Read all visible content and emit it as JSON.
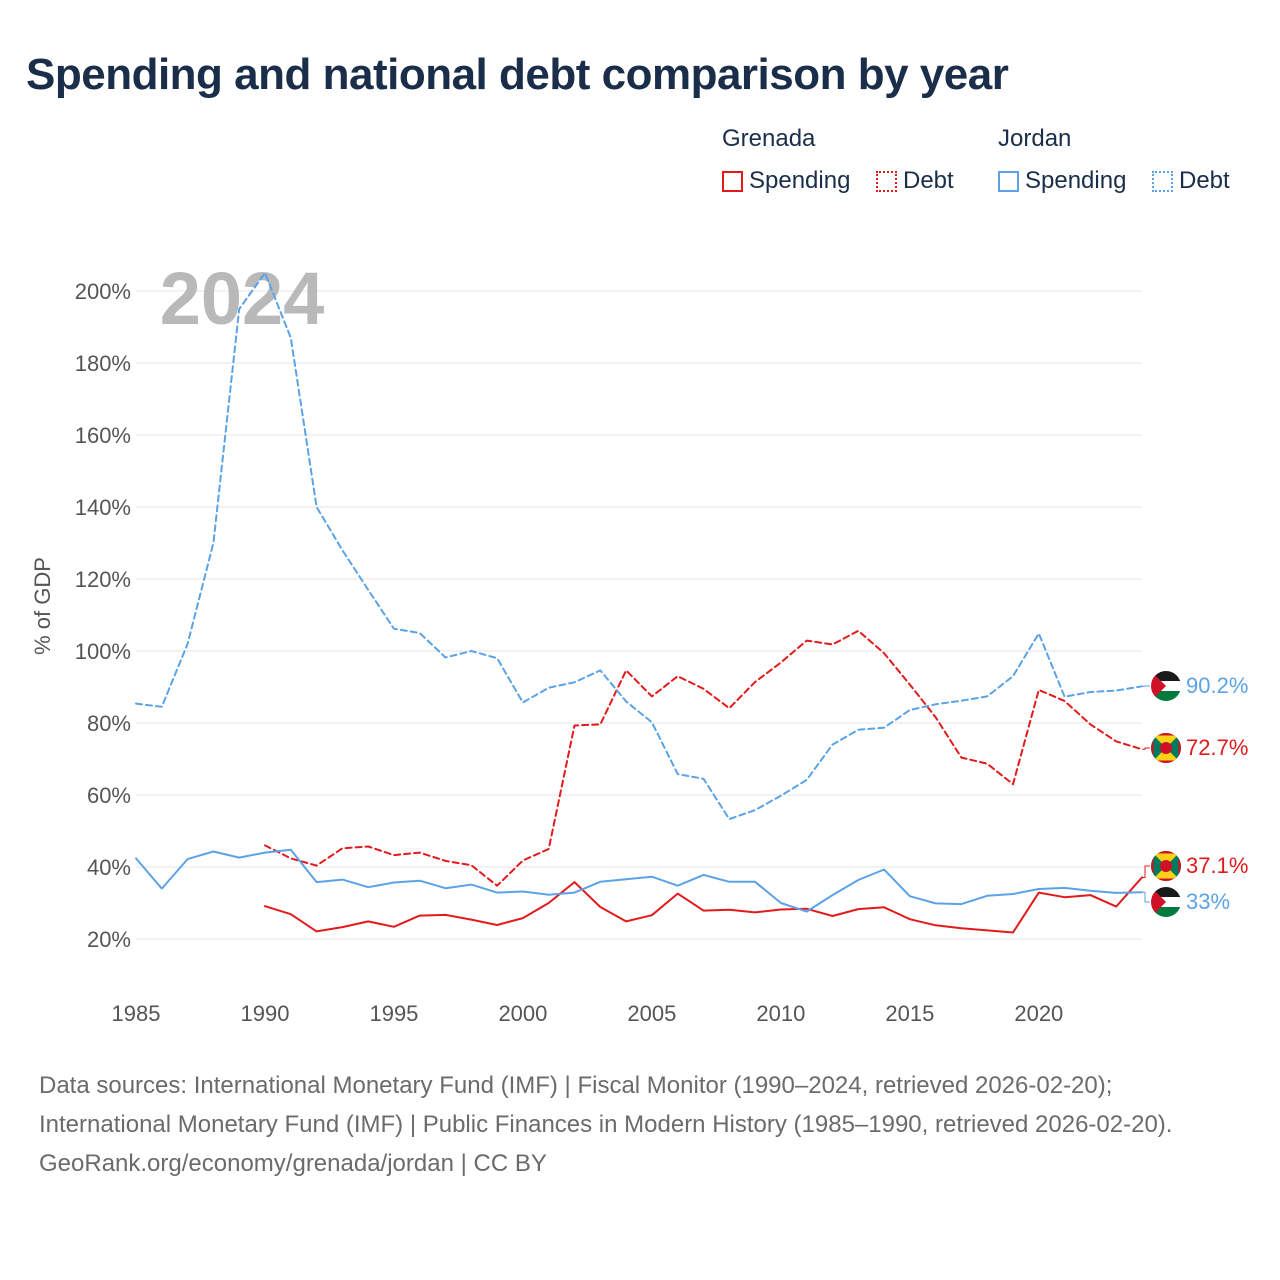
{
  "title": "Spending and national debt comparison by year",
  "legend": {
    "groups": [
      {
        "name": "Grenada",
        "color": "#e31a1c",
        "items": [
          "Spending",
          "Debt"
        ]
      },
      {
        "name": "Jordan",
        "color": "#5ba3e6",
        "items": [
          "Spending",
          "Debt"
        ]
      }
    ]
  },
  "chart_data": {
    "type": "line",
    "year_overlay": "2024",
    "ylabel": "% of GDP",
    "xlabel": "",
    "xlim": [
      1985,
      2024
    ],
    "ylim": [
      10,
      210
    ],
    "x_ticks": [
      "1985",
      "1990",
      "1995",
      "2000",
      "2005",
      "2010",
      "2015",
      "2020"
    ],
    "y_ticks": [
      "20%",
      "40%",
      "60%",
      "80%",
      "100%",
      "120%",
      "140%",
      "160%",
      "180%",
      "200%"
    ],
    "series": [
      {
        "name": "Grenada Spending",
        "country": "Grenada",
        "metric": "Spending",
        "color": "#e31a1c",
        "dashed": false,
        "x": [
          1990,
          1991,
          1992,
          1993,
          1994,
          1995,
          1996,
          1997,
          1998,
          1999,
          2000,
          2001,
          2002,
          2003,
          2004,
          2005,
          2006,
          2007,
          2008,
          2009,
          2010,
          2011,
          2012,
          2013,
          2014,
          2015,
          2016,
          2017,
          2018,
          2019,
          2020,
          2021,
          2022,
          2023,
          2024
        ],
        "values": [
          29.1,
          26.9,
          22.1,
          23.3,
          24.9,
          23.4,
          26.5,
          26.7,
          25.4,
          23.9,
          25.8,
          30.0,
          35.8,
          28.9,
          24.9,
          26.6,
          32.6,
          27.9,
          28.1,
          27.4,
          28.2,
          28.4,
          26.4,
          28.3,
          28.8,
          25.5,
          23.8,
          23.0,
          22.4,
          21.8,
          32.9,
          31.6,
          32.2,
          29.0,
          37.1
        ],
        "end_label": "37.1%"
      },
      {
        "name": "Grenada Debt",
        "country": "Grenada",
        "metric": "Debt",
        "color": "#e31a1c",
        "dashed": true,
        "x": [
          1990,
          1991,
          1992,
          1993,
          1994,
          1995,
          1996,
          1997,
          1998,
          1999,
          2000,
          2001,
          2002,
          2003,
          2004,
          2005,
          2006,
          2007,
          2008,
          2009,
          2010,
          2011,
          2012,
          2013,
          2014,
          2015,
          2016,
          2017,
          2018,
          2019,
          2020,
          2021,
          2022,
          2023,
          2024
        ],
        "values": [
          46.0,
          42.4,
          40.4,
          45.2,
          45.7,
          43.3,
          44.0,
          41.7,
          40.5,
          34.8,
          41.8,
          45.0,
          79.3,
          79.6,
          94.6,
          87.4,
          93.0,
          89.5,
          84.1,
          91.4,
          96.8,
          102.9,
          101.8,
          105.6,
          99.4,
          90.7,
          81.6,
          70.4,
          68.7,
          63.0,
          89.2,
          86.1,
          79.6,
          74.9,
          72.7
        ],
        "end_label": "72.7%"
      },
      {
        "name": "Jordan Spending",
        "country": "Jordan",
        "metric": "Spending",
        "color": "#5ba3e6",
        "dashed": false,
        "x": [
          1985,
          1986,
          1987,
          1988,
          1989,
          1990,
          1991,
          1992,
          1993,
          1994,
          1995,
          1996,
          1997,
          1998,
          1999,
          2000,
          2001,
          2002,
          2003,
          2004,
          2005,
          2006,
          2007,
          2008,
          2009,
          2010,
          2011,
          2012,
          2013,
          2014,
          2015,
          2016,
          2017,
          2018,
          2019,
          2020,
          2021,
          2022,
          2023,
          2024
        ],
        "values": [
          42.4,
          34.0,
          42.2,
          44.3,
          42.6,
          44.0,
          44.8,
          35.8,
          36.5,
          34.4,
          35.7,
          36.2,
          34.1,
          35.1,
          32.9,
          33.2,
          32.3,
          32.9,
          35.9,
          36.6,
          37.3,
          34.8,
          37.8,
          35.9,
          35.9,
          30.0,
          27.6,
          32.2,
          36.4,
          39.3,
          31.9,
          29.9,
          29.7,
          32.0,
          32.5,
          33.9,
          34.2,
          33.4,
          32.8,
          33.0
        ],
        "end_label": "33%"
      },
      {
        "name": "Jordan Debt",
        "country": "Jordan",
        "metric": "Debt",
        "color": "#5ba3e6",
        "dashed": true,
        "x": [
          1985,
          1986,
          1987,
          1988,
          1989,
          1990,
          1991,
          1992,
          1993,
          1994,
          1995,
          1996,
          1997,
          1998,
          1999,
          2000,
          2001,
          2002,
          2003,
          2004,
          2005,
          2006,
          2007,
          2008,
          2009,
          2010,
          2011,
          2012,
          2013,
          2014,
          2015,
          2016,
          2017,
          2018,
          2019,
          2020,
          2021,
          2022,
          2023,
          2024
        ],
        "values": [
          85.4,
          84.5,
          102.0,
          130.0,
          195.0,
          205.0,
          187.0,
          140.0,
          128.0,
          117.0,
          106.2,
          105.0,
          98.2,
          100.0,
          98.0,
          85.7,
          89.8,
          91.3,
          94.6,
          86.0,
          80.2,
          65.8,
          64.5,
          53.3,
          55.8,
          59.8,
          64.2,
          74.0,
          78.1,
          78.7,
          83.6,
          85.2,
          86.2,
          87.4,
          93.0,
          104.9,
          87.3,
          88.6,
          89.0,
          90.2
        ],
        "end_label": "90.2%"
      }
    ]
  },
  "footer": {
    "sources": "Data sources: International Monetary Fund (IMF) | Fiscal Monitor (1990–2024, retrieved 2026-02-20); International Monetary Fund (IMF) | Public Finances in Modern History (1985–1990, retrieved 2026-02-20).",
    "credit": "GeoRank.org/economy/grenada/jordan | CC BY"
  }
}
